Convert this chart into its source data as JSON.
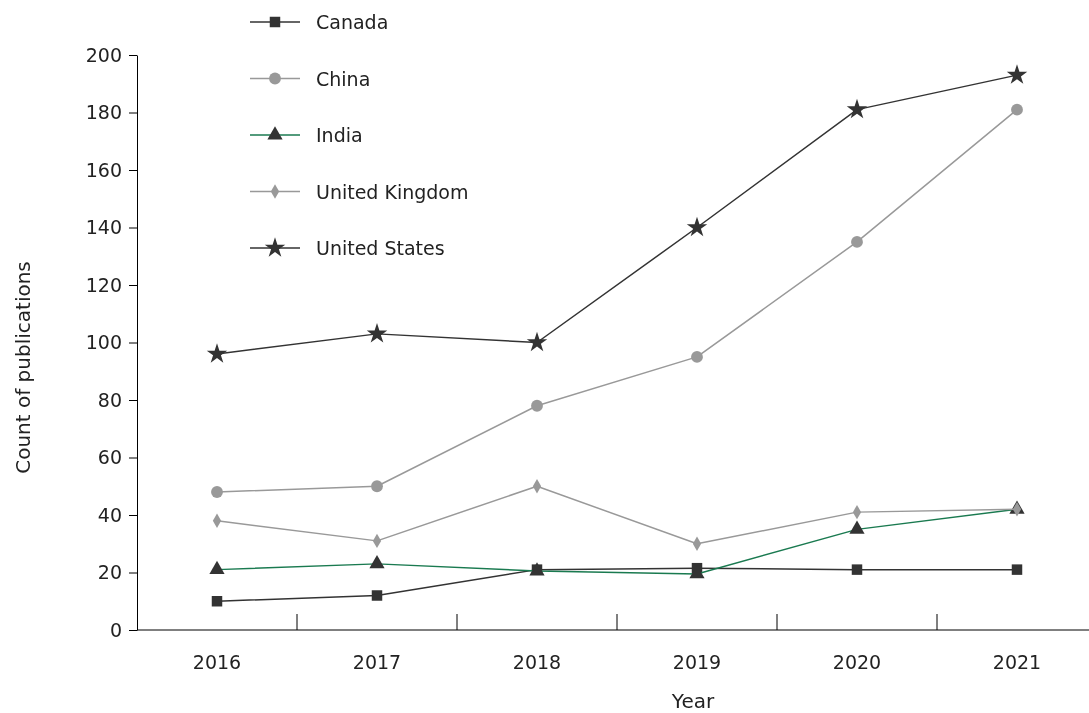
{
  "chart_data": {
    "type": "line",
    "xlabel": "Year",
    "ylabel": "Count of publications",
    "categories": [
      "2016",
      "2017",
      "2018",
      "2019",
      "2020",
      "2021"
    ],
    "ylim": [
      0,
      200
    ],
    "yticks": [
      0,
      20,
      40,
      60,
      80,
      100,
      120,
      140,
      160,
      180,
      200
    ],
    "grid": false,
    "legend": "top left",
    "series": [
      {
        "name": "Canada",
        "color": "#333333",
        "marker": "square",
        "values": [
          10,
          12,
          21,
          21.5,
          21,
          21
        ]
      },
      {
        "name": "China",
        "color": "#999999",
        "marker": "circle",
        "values": [
          48,
          50,
          78,
          95,
          135,
          181
        ]
      },
      {
        "name": "India",
        "color": "#1a7a50",
        "marker": "triangle",
        "values": [
          21,
          23,
          20.5,
          19.5,
          35,
          42
        ]
      },
      {
        "name": "United Kingdom",
        "color": "#999999",
        "marker": "diamond",
        "values": [
          38,
          31,
          50,
          30,
          41,
          42
        ]
      },
      {
        "name": "United States",
        "color": "#333333",
        "marker": "star",
        "values": [
          96,
          103,
          100,
          140,
          181,
          193
        ]
      }
    ]
  }
}
